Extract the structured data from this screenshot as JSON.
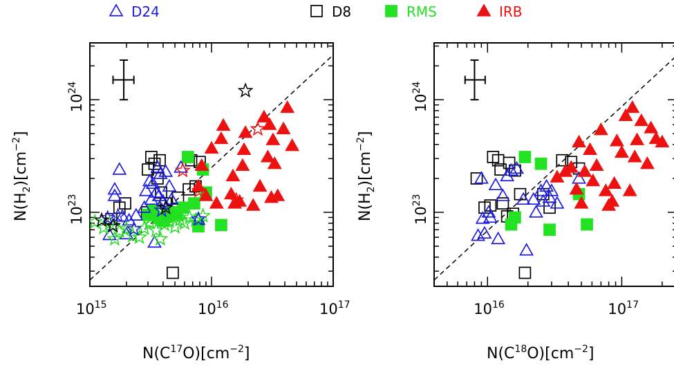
{
  "legend": [
    {
      "name": "D24",
      "marker": "triangle-open",
      "color": "#1c1cdc"
    },
    {
      "name": "D8",
      "marker": "square-open",
      "color": "#000000"
    },
    {
      "name": "RMS",
      "marker": "square-filled",
      "color": "#22e222"
    },
    {
      "name": "IRB",
      "marker": "triangle-filled",
      "color": "#ee1111"
    }
  ],
  "chart_data": [
    {
      "type": "scatter",
      "xlabel": {
        "base": "N(C",
        "sup": "17",
        "mid": "O)[cm",
        "sup2": "−2",
        "end": "]"
      },
      "ylabel": {
        "base": "N(H",
        "sub": "2",
        "mid": ")[cm",
        "sup2": "−2",
        "end": "]"
      },
      "x_scale": "log",
      "y_scale": "log",
      "xlim": [
        1000000000000000.0,
        1e+17
      ],
      "ylim": [
        2.2e+22,
        3.2e+24
      ],
      "x_ticks": [
        {
          "value": 1000000000000000.0,
          "base": "10",
          "exp": "15"
        },
        {
          "value": 1e+16,
          "base": "10",
          "exp": "16"
        },
        {
          "value": 1e+17,
          "base": "10",
          "exp": "17"
        }
      ],
      "y_ticks": [
        {
          "value": 1e+23,
          "base": "10",
          "exp": "23"
        },
        {
          "value": 1e+24,
          "base": "10",
          "exp": "24"
        }
      ],
      "reference_line": {
        "style": "dashed",
        "points": [
          [
            1000000000000000.0,
            2.5e+22
          ],
          [
            1e+17,
            2.5e+24
          ]
        ]
      },
      "error_bar": {
        "x": 1900000000000000.0,
        "y": 1.5e+24,
        "x_range": [
          1550000000000000.0,
          2300000000000000.0
        ],
        "y_range": [
          1e+24,
          2.25e+24
        ]
      },
      "series": [
        {
          "name": "D24",
          "points": [
            [
              1450000000000000.0,
              6.3e+22
            ],
            [
              1600000000000000.0,
              1.6e+23
            ],
            [
              1750000000000000.0,
              2.4e+23
            ],
            [
              1850000000000000.0,
              9.2e+22
            ],
            [
              2000000000000000.0,
              6.4e+22
            ],
            [
              2100000000000000.0,
              8.5e+22
            ],
            [
              2400000000000000.0,
              9.4e+22
            ],
            [
              2800000000000000.0,
              1.1e+23
            ],
            [
              2900000000000000.0,
              1.55e+23
            ],
            [
              3100000000000000.0,
              1.9e+23
            ],
            [
              3200000000000000.0,
              1.3e+23
            ],
            [
              3300000000000000.0,
              1.8e+23
            ],
            [
              3400000000000000.0,
              5.4e+22
            ],
            [
              3500000000000000.0,
              1.5e+23
            ],
            [
              3600000000000000.0,
              2.5e+23
            ],
            [
              3700000000000000.0,
              1.4e+23
            ],
            [
              3800000000000000.0,
              2.2e+23
            ],
            [
              4000000000000000.0,
              1.25e+23
            ],
            [
              4200000000000000.0,
              2.3e+23
            ],
            [
              4500000000000000.0,
              1.7e+23
            ],
            [
              4700000000000000.0,
              1.3e+23
            ],
            [
              5600000000000000.0,
              2.5e+23
            ],
            [
              7800000000000000.0,
              8.6e+22
            ],
            [
              1600000000000000.0,
              1.4e+23
            ]
          ]
        },
        {
          "name": "D8",
          "points": [
            [
              1500000000000000.0,
              8.7e+22
            ],
            [
              1750000000000000.0,
              1.1e+23
            ],
            [
              1950000000000000.0,
              1.2e+23
            ],
            [
              2950000000000000.0,
              1e+23
            ],
            [
              3000000000000000.0,
              2.4e+23
            ],
            [
              3200000000000000.0,
              3.1e+23
            ],
            [
              3400000000000000.0,
              2.7e+23
            ],
            [
              3600000000000000.0,
              2e+23
            ],
            [
              3750000000000000.0,
              2.9e+23
            ],
            [
              3850000000000000.0,
              1.5e+23
            ],
            [
              4200000000000000.0,
              1.2e+23
            ],
            [
              4500000000000000.0,
              1e+23
            ],
            [
              4800000000000000.0,
              2.9e+22
            ],
            [
              5300000000000000.0,
              1.35e+23
            ],
            [
              6500000000000000.0,
              1.6e+23
            ],
            [
              6800000000000000.0,
              2.9e+23
            ],
            [
              7400000000000000.0,
              1.7e+23
            ],
            [
              8000000000000000.0,
              2.8e+23
            ]
          ]
        },
        {
          "name": "RMS",
          "points": [
            [
              3000000000000000.0,
              9.5e+22
            ],
            [
              3300000000000000.0,
              1.05e+23
            ],
            [
              3700000000000000.0,
              8.9e+22
            ],
            [
              4000000000000000.0,
              8.4e+22
            ],
            [
              4300000000000000.0,
              9.3e+22
            ],
            [
              4700000000000000.0,
              1e+23
            ],
            [
              5200000000000000.0,
              9.6e+22
            ],
            [
              5800000000000000.0,
              1.1e+23
            ],
            [
              6400000000000000.0,
              3.1e+23
            ],
            [
              7200000000000000.0,
              1.2e+23
            ],
            [
              7800000000000000.0,
              7.5e+22
            ],
            [
              9000000000000000.0,
              1.5e+23
            ],
            [
              1.2e+16,
              7.7e+22
            ],
            [
              8500000000000000.0,
              2.4e+23
            ]
          ]
        },
        {
          "name": "IRB",
          "points": [
            [
              7800000000000000.0,
              1.7e+23
            ],
            [
              8300000000000000.0,
              2.6e+23
            ],
            [
              9000000000000000.0,
              1.4e+23
            ],
            [
              1e+16,
              3.7e+23
            ],
            [
              1.1e+16,
              1.2e+23
            ],
            [
              1.2e+16,
              4.5e+23
            ],
            [
              1.25e+16,
              5.9e+23
            ],
            [
              1.45e+16,
              1.45e+23
            ],
            [
              1.5e+16,
              2.1e+23
            ],
            [
              1.55e+16,
              1.2e+23
            ],
            [
              1.7e+16,
              1.25e+23
            ],
            [
              1.8e+16,
              2.6e+23
            ],
            [
              1.85e+16,
              3.6e+23
            ],
            [
              1.9e+16,
              5.1e+23
            ],
            [
              2.2e+16,
              1.15e+23
            ],
            [
              2.5e+16,
              1.7e+23
            ],
            [
              2.7e+16,
              7e+23
            ],
            [
              2.9e+16,
              3.1e+23
            ],
            [
              3e+16,
              6e+23
            ],
            [
              3.1e+16,
              1.35e+23
            ],
            [
              3.2e+16,
              4.4e+23
            ],
            [
              3.3e+16,
              2.7e+23
            ],
            [
              3.5e+16,
              1.4e+23
            ],
            [
              3.9e+16,
              5.5e+23
            ],
            [
              4.2e+16,
              8.5e+23
            ],
            [
              4.6e+16,
              3.9e+23
            ]
          ]
        }
      ],
      "extra_markers": [
        {
          "marker": "star-open",
          "color": "#22dd22",
          "points": [
            [
              1100000000000000.0,
              8.2e+22
            ],
            [
              1300000000000000.0,
              7.3e+22
            ],
            [
              1450000000000000.0,
              7.9e+22
            ],
            [
              1600000000000000.0,
              5.8e+22
            ],
            [
              1750000000000000.0,
              6.8e+22
            ],
            [
              2000000000000000.0,
              7.1e+22
            ],
            [
              2250000000000000.0,
              6.2e+22
            ],
            [
              2550000000000000.0,
              6e+22
            ],
            [
              2800000000000000.0,
              7.2e+22
            ],
            [
              3100000000000000.0,
              8.1e+22
            ],
            [
              3500000000000000.0,
              6.9e+22
            ],
            [
              3800000000000000.0,
              5.8e+22
            ],
            [
              4100000000000000.0,
              7.8e+22
            ],
            [
              4500000000000000.0,
              8.3e+22
            ],
            [
              5000000000000000.0,
              7.4e+22
            ],
            [
              5500000000000000.0,
              8.6e+22
            ],
            [
              6000000000000000.0,
              8e+22
            ],
            [
              6600000000000000.0,
              9e+22
            ],
            [
              7400000000000000.0,
              8.5e+22
            ],
            [
              8500000000000000.0,
              9.3e+22
            ],
            [
              3200000000000000.0,
              9e+22
            ],
            [
              4400000000000000.0,
              9.6e+22
            ]
          ]
        },
        {
          "marker": "star-open",
          "color": "#1c1cdc",
          "points": [
            [
              1400000000000000.0,
              8.9e+22
            ],
            [
              1700000000000000.0,
              9.3e+22
            ],
            [
              2300000000000000.0,
              7.1e+22
            ],
            [
              3900000000000000.0,
              1.04e+23
            ],
            [
              7800000000000000.0,
              8.7e+22
            ]
          ]
        },
        {
          "marker": "star-open",
          "color": "#000000",
          "points": [
            [
              1250000000000000.0,
              8.5e+22
            ],
            [
              1550000000000000.0,
              7.6e+22
            ],
            [
              4200000000000000.0,
              1.1e+23
            ],
            [
              1.9e+16,
              1.2e+24
            ]
          ]
        },
        {
          "marker": "star-open",
          "color": "#ee1111",
          "points": [
            [
              5800000000000000.0,
              2.35e+23
            ],
            [
              7900000000000000.0,
              1.55e+23
            ],
            [
              1.6e+16,
              1.28e+23
            ],
            [
              2.4e+16,
              5.5e+23
            ]
          ]
        }
      ]
    },
    {
      "type": "scatter",
      "xlabel": {
        "base": "N(C",
        "sup": "18",
        "mid": "O)[cm",
        "sup2": "−2",
        "end": "]"
      },
      "ylabel": {
        "base": "N(H",
        "sub": "2",
        "mid": ")[cm",
        "sup2": "−2",
        "end": "]"
      },
      "x_scale": "log",
      "y_scale": "log",
      "xlim": [
        4000000000000000.0,
        2.6e+17
      ],
      "ylim": [
        2.2e+22,
        3.2e+24
      ],
      "x_ticks": [
        {
          "value": 1e+16,
          "base": "10",
          "exp": "16"
        },
        {
          "value": 1e+17,
          "base": "10",
          "exp": "17"
        }
      ],
      "y_ticks": [
        {
          "value": 1e+23,
          "base": "10",
          "exp": "23"
        },
        {
          "value": 1e+24,
          "base": "10",
          "exp": "24"
        }
      ],
      "reference_line": {
        "style": "dashed",
        "points": [
          [
            4000000000000000.0,
            2.5e+22
          ],
          [
            2.6e+17,
            2.5e+24
          ]
        ]
      },
      "error_bar": {
        "x": 8000000000000000.0,
        "y": 1.5e+24,
        "x_range": [
          6800000000000000.0,
          9600000000000000.0
        ],
        "y_range": [
          1e+24,
          2.25e+24
        ]
      },
      "series": [
        {
          "name": "D24",
          "points": [
            [
              8500000000000000.0,
              6.2e+22
            ],
            [
              9000000000000000.0,
              2e+23
            ],
            [
              9200000000000000.0,
              8.8e+22
            ],
            [
              9500000000000000.0,
              6.5e+22
            ],
            [
              1.02e+16,
              1e+23
            ],
            [
              1.05e+16,
              9e+22
            ],
            [
              1.15e+16,
              1.75e+23
            ],
            [
              1.2e+16,
              5.8e+22
            ],
            [
              1.3e+16,
              1.4e+23
            ],
            [
              1.4e+16,
              2.1e+23
            ],
            [
              1.5e+16,
              2.35e+23
            ],
            [
              1.65e+16,
              2.45e+23
            ],
            [
              1.85e+16,
              1.3e+23
            ],
            [
              1.95e+16,
              4.6e+22
            ],
            [
              2.2e+16,
              1.3e+23
            ],
            [
              2.3e+16,
              1e+23
            ],
            [
              2.5e+16,
              1.55e+23
            ],
            [
              2.6e+16,
              1.25e+23
            ],
            [
              2.75e+16,
              1.7e+23
            ],
            [
              2.9e+16,
              1.35e+23
            ],
            [
              3e+16,
              1.55e+23
            ],
            [
              3.3e+16,
              1.2e+23
            ],
            [
              4.8e+16,
              2e+23
            ]
          ]
        },
        {
          "name": "D8",
          "points": [
            [
              8300000000000000.0,
              2e+23
            ],
            [
              9500000000000000.0,
              1.1e+23
            ],
            [
              1.05e+16,
              1.15e+23
            ],
            [
              1.1e+16,
              3.1e+23
            ],
            [
              1.2e+16,
              2.9e+23
            ],
            [
              1.25e+16,
              2.4e+23
            ],
            [
              1.3e+16,
              1.2e+23
            ],
            [
              1.4e+16,
              9.2e+22
            ],
            [
              1.45e+16,
              2.75e+23
            ],
            [
              1.55e+16,
              9.7e+22
            ],
            [
              1.6e+16,
              2.35e+23
            ],
            [
              1.75e+16,
              1.45e+23
            ],
            [
              1.9e+16,
              2.9e+22
            ],
            [
              2.6e+16,
              1.45e+23
            ],
            [
              2.9e+16,
              1.1e+23
            ],
            [
              3.6e+16,
              2.9e+23
            ],
            [
              4.2e+16,
              2.8e+23
            ],
            [
              4.8e+16,
              2.45e+23
            ]
          ]
        },
        {
          "name": "RMS",
          "points": [
            [
              1.5e+16,
              7.8e+22
            ],
            [
              1.6e+16,
              9e+22
            ],
            [
              1.9e+16,
              3.1e+23
            ],
            [
              2.5e+16,
              2.7e+23
            ],
            [
              2.9e+16,
              7e+22
            ],
            [
              4.8e+16,
              1.45e+23
            ],
            [
              5.5e+16,
              7.8e+22
            ]
          ]
        },
        {
          "name": "IRB",
          "points": [
            [
              3.3e+16,
              2.05e+23
            ],
            [
              3.8e+16,
              2.3e+23
            ],
            [
              4.2e+16,
              2.5e+23
            ],
            [
              4.6e+16,
              1.6e+23
            ],
            [
              4.8e+16,
              4.2e+23
            ],
            [
              5e+16,
              1.2e+23
            ],
            [
              5.3e+16,
              2.3e+23
            ],
            [
              5.8e+16,
              3.6e+23
            ],
            [
              6.1e+16,
              1.9e+23
            ],
            [
              6.5e+16,
              2.6e+23
            ],
            [
              7e+16,
              5.4e+23
            ],
            [
              7.6e+16,
              1.55e+23
            ],
            [
              8e+16,
              1.15e+23
            ],
            [
              8.5e+16,
              1.25e+23
            ],
            [
              8.8e+16,
              1.8e+23
            ],
            [
              9.2e+16,
              4.3e+23
            ],
            [
              1e+17,
              3.4e+23
            ],
            [
              1.07e+17,
              7.2e+23
            ],
            [
              1.15e+17,
              1.55e+23
            ],
            [
              1.2e+17,
              8.5e+23
            ],
            [
              1.25e+17,
              3.1e+23
            ],
            [
              1.4e+17,
              6.5e+23
            ],
            [
              1.55e+17,
              2.7e+23
            ],
            [
              1.65e+17,
              5.6e+23
            ],
            [
              1.8e+17,
              4.5e+23
            ],
            [
              2e+17,
              4.2e+23
            ],
            [
              1.3e+17,
              4.4e+23
            ]
          ]
        }
      ]
    }
  ]
}
